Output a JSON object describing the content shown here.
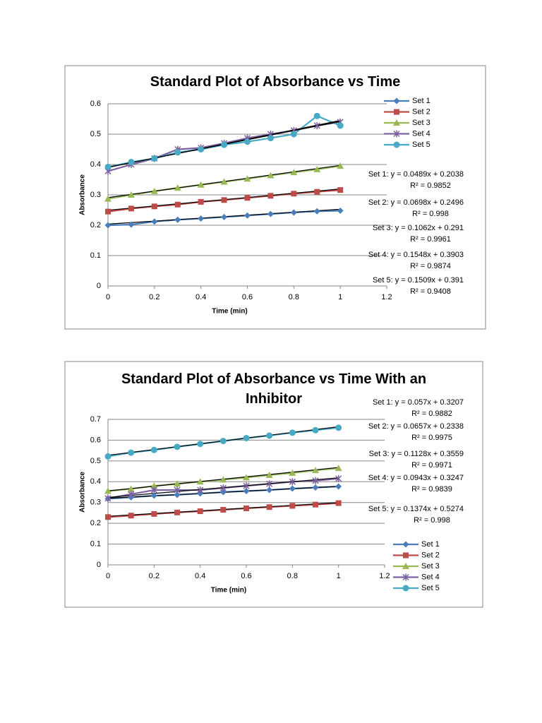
{
  "chart_data": [
    {
      "type": "line",
      "title": "Standard Plot of Absorbance vs Time",
      "x_label": "Time (min)",
      "y_label": "Absorbance",
      "x": [
        0,
        0.1,
        0.2,
        0.3,
        0.4,
        0.5,
        0.6,
        0.7,
        0.8,
        0.9,
        1
      ],
      "xlim": [
        0,
        1.2
      ],
      "xticks": [
        0,
        0.2,
        0.4,
        0.6,
        0.8,
        1,
        1.2
      ],
      "ylim": [
        0,
        0.6
      ],
      "yticks": [
        0,
        0.1,
        0.2,
        0.3,
        0.4,
        0.5,
        0.6
      ],
      "grid": true,
      "legend": "right",
      "series": [
        {
          "name": "Set 1",
          "color": "#4a7ebb",
          "marker": "diamond",
          "values": [
            0.2,
            0.202,
            0.212,
            0.218,
            0.222,
            0.227,
            0.232,
            0.237,
            0.242,
            0.246,
            0.248
          ]
        },
        {
          "name": "Set 2",
          "color": "#be4b48",
          "marker": "square",
          "values": [
            0.245,
            0.255,
            0.262,
            0.268,
            0.277,
            0.283,
            0.29,
            0.297,
            0.304,
            0.31,
            0.316
          ]
        },
        {
          "name": "Set 3",
          "color": "#98b954",
          "marker": "triangle",
          "values": [
            0.287,
            0.3,
            0.312,
            0.323,
            0.333,
            0.343,
            0.353,
            0.364,
            0.374,
            0.384,
            0.395
          ]
        },
        {
          "name": "Set 4",
          "color": "#7d60a0",
          "marker": "star",
          "values": [
            0.378,
            0.4,
            0.42,
            0.45,
            0.455,
            0.47,
            0.487,
            0.5,
            0.512,
            0.528,
            0.54
          ]
        },
        {
          "name": "Set 5",
          "color": "#46aac5",
          "marker": "circle",
          "values": [
            0.392,
            0.408,
            0.42,
            0.44,
            0.45,
            0.465,
            0.475,
            0.487,
            0.5,
            0.56,
            0.528
          ]
        }
      ],
      "trendlines": [
        {
          "equation": "Set 1: y = 0.0489x + 0.2038",
          "r2": "R² = 0.9852",
          "slope": 0.0489,
          "intercept": 0.2038
        },
        {
          "equation": "Set 2: y = 0.0698x + 0.2496",
          "r2": "R² = 0.998",
          "slope": 0.0698,
          "intercept": 0.2496
        },
        {
          "equation": "Set 3: y = 0.1062x + 0.291",
          "r2": "R² = 0.9961",
          "slope": 0.1062,
          "intercept": 0.291
        },
        {
          "equation": "Set 4: y = 0.1548x + 0.3903",
          "r2": "R² = 0.9874",
          "slope": 0.1548,
          "intercept": 0.3903
        },
        {
          "equation": "Set 5: y = 0.1509x + 0.391",
          "r2": "R² = 0.9408",
          "slope": 0.1509,
          "intercept": 0.391
        }
      ]
    },
    {
      "type": "line",
      "title": "Standard Plot of Absorbance vs Time With an Inhibitor",
      "x_label": "Time (min)",
      "y_label": "Absorbance",
      "x": [
        0,
        0.1,
        0.2,
        0.3,
        0.4,
        0.5,
        0.6,
        0.7,
        0.8,
        0.9,
        1
      ],
      "xlim": [
        0,
        1.2
      ],
      "xticks": [
        0,
        0.2,
        0.4,
        0.6,
        0.8,
        1,
        1.2
      ],
      "ylim": [
        0,
        0.7
      ],
      "yticks": [
        0,
        0.1,
        0.2,
        0.3,
        0.4,
        0.5,
        0.6,
        0.7
      ],
      "grid": true,
      "legend": "right",
      "series": [
        {
          "name": "Set 1",
          "color": "#4a7ebb",
          "marker": "diamond",
          "values": [
            0.318,
            0.325,
            0.333,
            0.337,
            0.343,
            0.35,
            0.355,
            0.36,
            0.367,
            0.372,
            0.377
          ]
        },
        {
          "name": "Set 2",
          "color": "#be4b48",
          "marker": "square",
          "values": [
            0.23,
            0.237,
            0.245,
            0.252,
            0.258,
            0.265,
            0.272,
            0.278,
            0.284,
            0.29,
            0.297
          ]
        },
        {
          "name": "Set 3",
          "color": "#98b954",
          "marker": "triangle",
          "values": [
            0.355,
            0.365,
            0.38,
            0.39,
            0.4,
            0.41,
            0.42,
            0.432,
            0.442,
            0.455,
            0.465
          ]
        },
        {
          "name": "Set 4",
          "color": "#7d60a0",
          "marker": "star",
          "values": [
            0.32,
            0.34,
            0.36,
            0.36,
            0.36,
            0.37,
            0.38,
            0.39,
            0.4,
            0.405,
            0.415
          ]
        },
        {
          "name": "Set 5",
          "color": "#46aac5",
          "marker": "circle",
          "values": [
            0.522,
            0.54,
            0.553,
            0.568,
            0.582,
            0.596,
            0.61,
            0.622,
            0.636,
            0.648,
            0.66
          ]
        }
      ],
      "trendlines": [
        {
          "equation": "Set 1: y = 0.057x + 0.3207",
          "r2": "R² = 0.9882",
          "slope": 0.057,
          "intercept": 0.3207
        },
        {
          "equation": "Set 2: y = 0.0657x + 0.2338",
          "r2": "R² = 0.9975",
          "slope": 0.0657,
          "intercept": 0.2338
        },
        {
          "equation": "Set 3: y = 0.1128x + 0.3559",
          "r2": "R² = 0.9971",
          "slope": 0.1128,
          "intercept": 0.3559
        },
        {
          "equation": "Set 4: y = 0.0943x + 0.3247",
          "r2": "R² = 0.9839",
          "slope": 0.0943,
          "intercept": 0.3247
        },
        {
          "equation": "Set 5: y = 0.1374x + 0.5274",
          "r2": "R² = 0.998",
          "slope": 0.1374,
          "intercept": 0.5274
        }
      ]
    }
  ]
}
